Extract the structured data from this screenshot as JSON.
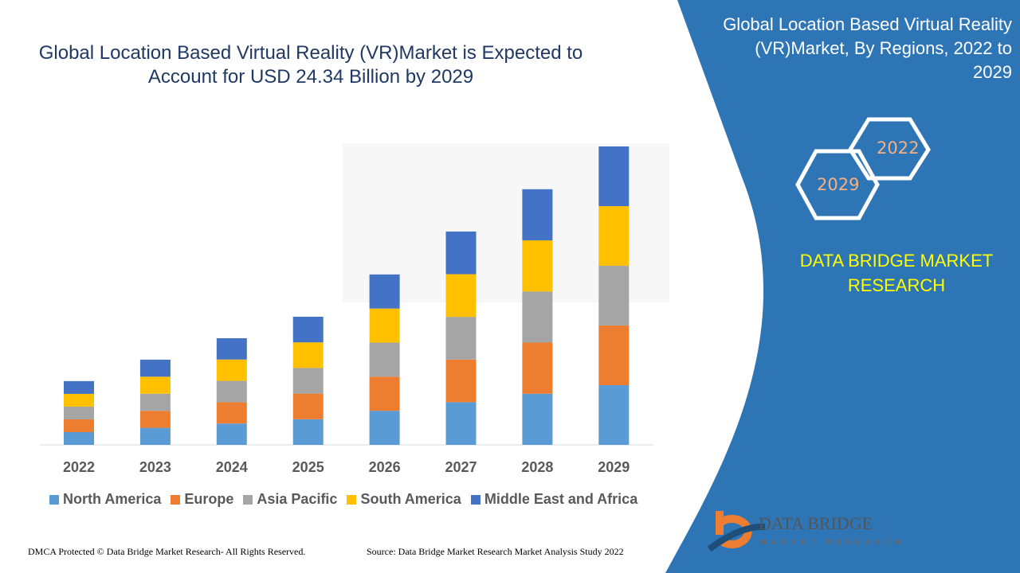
{
  "title": "Global Location Based Virtual Reality (VR)Market is Expected to Account for USD 24.34 Billion by 2029",
  "side_panel": {
    "title": "Global Location Based Virtual Reality (VR)Market, By Regions, 2022 to 2029",
    "hex_year_1": "2022",
    "hex_year_2": "2029",
    "brand": "DATA BRIDGE MARKET RESEARCH",
    "logo_text": "DATA BRIDGE",
    "logo_subtext": "MARKET RESEARCH",
    "panel_color": "#2e75b6"
  },
  "footer": {
    "left": "DMCA Protected © Data Bridge Market Research- All Rights Reserved.",
    "right": "Source: Data Bridge Market Research Market Analysis Study 2022"
  },
  "chart_data": {
    "type": "bar",
    "stacked": true,
    "unit": "USD Billion (estimated; 2029 total per title)",
    "categories": [
      "2022",
      "2023",
      "2024",
      "2025",
      "2026",
      "2027",
      "2028",
      "2029"
    ],
    "series": [
      {
        "name": "North America",
        "color": "#5b9bd5",
        "values": [
          1.04,
          1.39,
          1.74,
          2.09,
          2.78,
          3.48,
          4.17,
          4.87
        ]
      },
      {
        "name": "Europe",
        "color": "#ed7d31",
        "values": [
          1.04,
          1.39,
          1.74,
          2.09,
          2.78,
          3.48,
          4.17,
          4.87
        ]
      },
      {
        "name": "Asia Pacific",
        "color": "#a5a5a5",
        "values": [
          1.04,
          1.39,
          1.74,
          2.09,
          2.78,
          3.48,
          4.17,
          4.87
        ]
      },
      {
        "name": "South America",
        "color": "#ffc000",
        "values": [
          1.04,
          1.39,
          1.74,
          2.09,
          2.78,
          3.48,
          4.17,
          4.86
        ]
      },
      {
        "name": "Middle East and Africa",
        "color": "#4472c4",
        "values": [
          1.04,
          1.39,
          1.74,
          2.09,
          2.78,
          3.48,
          4.17,
          4.87
        ]
      }
    ],
    "ylim": [
      0,
      24.34
    ],
    "grid": false,
    "legend": "bottom"
  }
}
